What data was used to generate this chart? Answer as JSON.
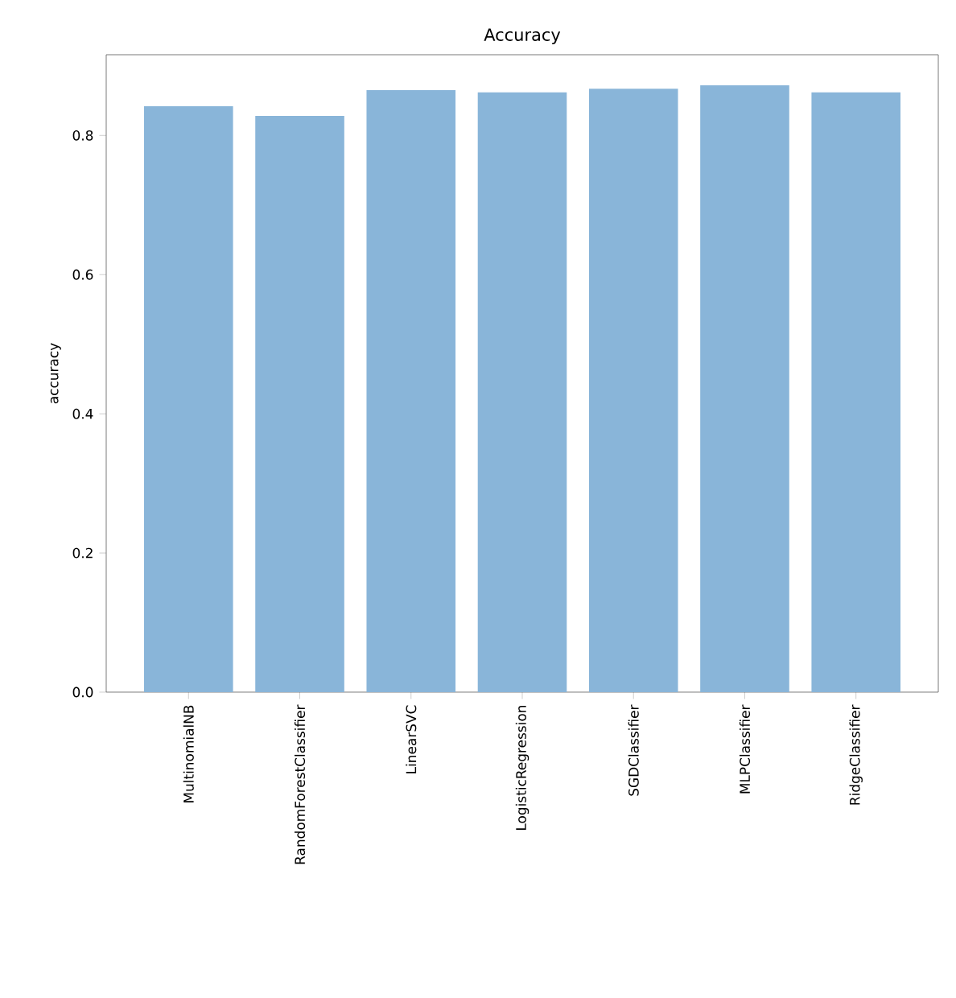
{
  "chart_data": {
    "type": "bar",
    "title": "Accuracy",
    "ylabel": "accuracy",
    "categories": [
      "MultinomialNB",
      "RandomForestClassifier",
      "LinearSVC",
      "LogisticRegression",
      "SGDClassifier",
      "MLPClassifier",
      "RidgeClassifier"
    ],
    "values": [
      0.842,
      0.828,
      0.865,
      0.862,
      0.867,
      0.872,
      0.862
    ],
    "color": "#89b5d9",
    "ylim": [
      0,
      0.916
    ],
    "yticks": [
      {
        "value": 0,
        "label": "0.0"
      },
      0.2,
      0.4,
      0.6,
      0.8
    ],
    "grid": false
  }
}
